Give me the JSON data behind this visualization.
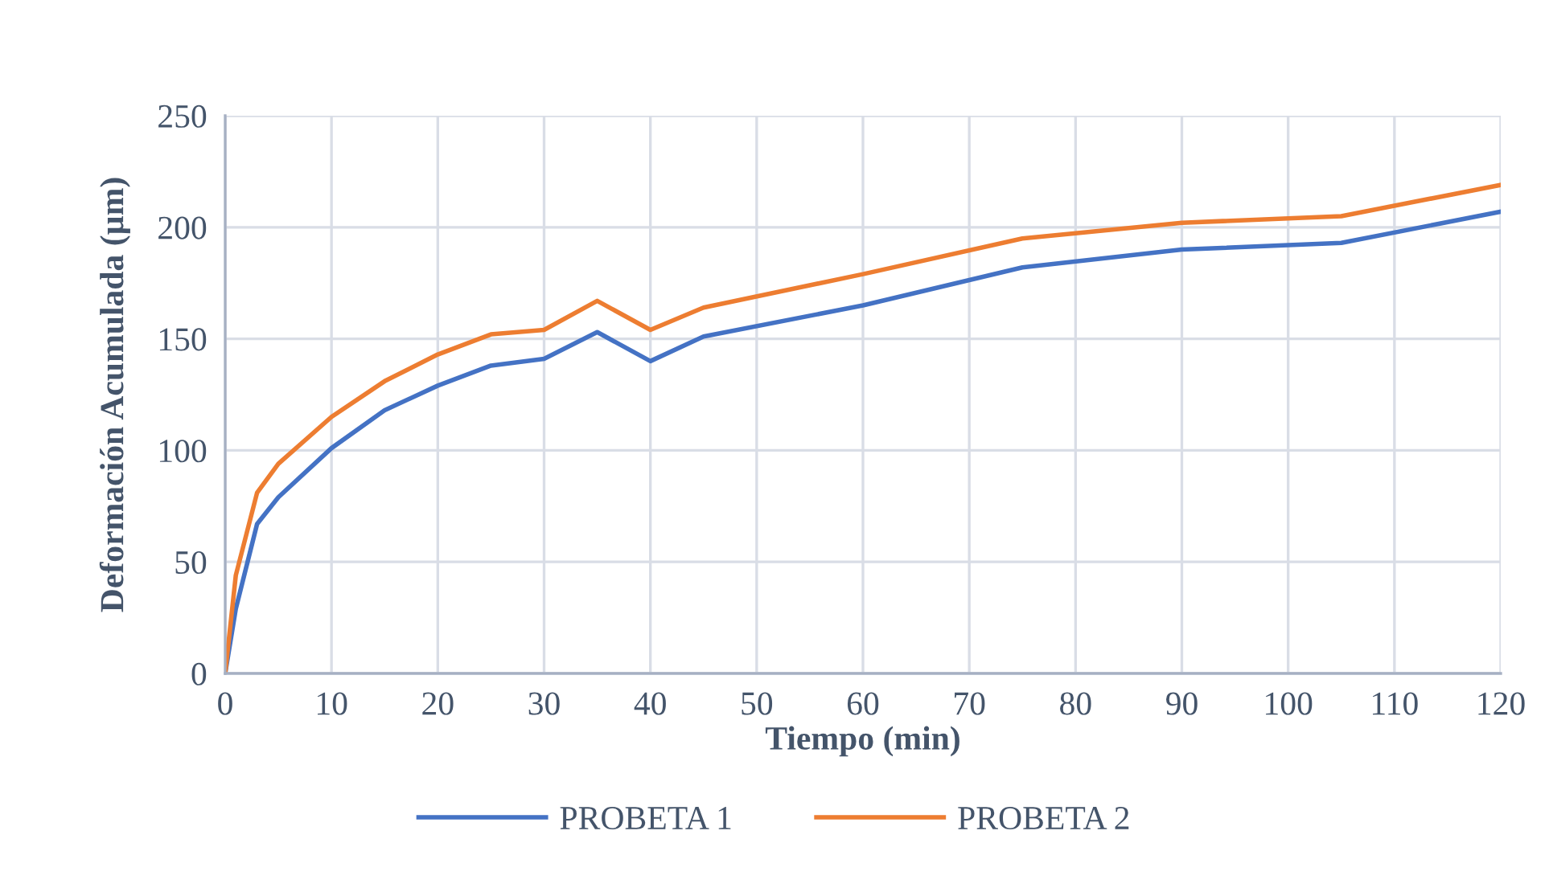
{
  "chart_data": {
    "type": "line",
    "xlabel": "Tiempo (min)",
    "ylabel": "Deformación Acumulada (µm)",
    "x": [
      0,
      1,
      3,
      5,
      10,
      15,
      20,
      25,
      30,
      35,
      40,
      45,
      60,
      75,
      90,
      105,
      120
    ],
    "series": [
      {
        "name": "PROBETA 1",
        "color": "#4472c4",
        "values": [
          0,
          29,
          67,
          79,
          101,
          118,
          129,
          138,
          141,
          153,
          140,
          151,
          165,
          182,
          190,
          193,
          207
        ]
      },
      {
        "name": "PROBETA 2",
        "color": "#ed7d31",
        "values": [
          0,
          44,
          81,
          94,
          115,
          131,
          143,
          152,
          154,
          167,
          154,
          164,
          179,
          195,
          202,
          205,
          219
        ]
      }
    ],
    "xlim": [
      0,
      120
    ],
    "xticks": [
      0,
      10,
      20,
      30,
      40,
      50,
      60,
      70,
      80,
      90,
      100,
      110,
      120
    ],
    "ylim": [
      0,
      250
    ],
    "yticks": [
      0,
      50,
      100,
      150,
      200,
      250
    ],
    "grid": true,
    "legend": "bottom",
    "marker": "none",
    "line_style": "solid"
  }
}
